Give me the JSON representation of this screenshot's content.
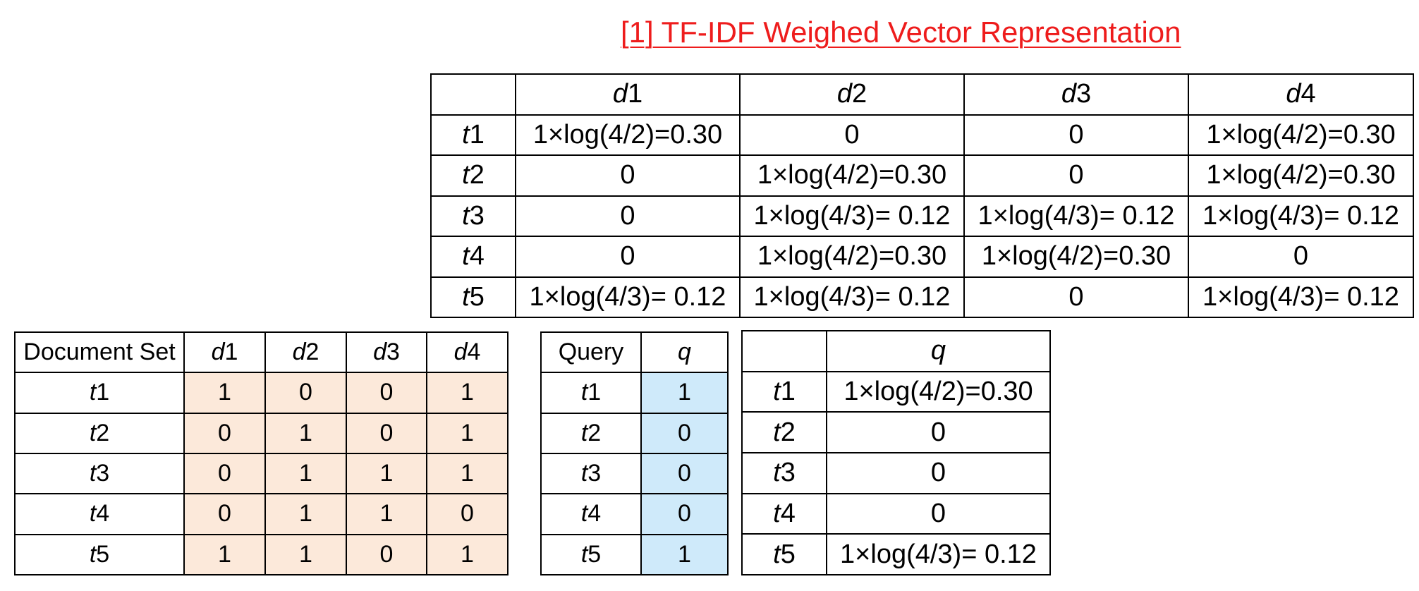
{
  "title": "[1] TF-IDF Weighed Vector Representation",
  "tfidf_table": {
    "corner": "",
    "columns": [
      {
        "prefix": "d",
        "num": "1"
      },
      {
        "prefix": "d",
        "num": "2"
      },
      {
        "prefix": "d",
        "num": "3"
      },
      {
        "prefix": "d",
        "num": "4"
      }
    ],
    "rows": [
      {
        "prefix": "t",
        "num": "1",
        "cells": [
          "1×log(4/2)=0.30",
          "0",
          "0",
          "1×log(4/2)=0.30"
        ]
      },
      {
        "prefix": "t",
        "num": "2",
        "cells": [
          "0",
          "1×log(4/2)=0.30",
          "0",
          "1×log(4/2)=0.30"
        ]
      },
      {
        "prefix": "t",
        "num": "3",
        "cells": [
          "0",
          "1×log(4/3)= 0.12",
          "1×log(4/3)= 0.12",
          "1×log(4/3)= 0.12"
        ]
      },
      {
        "prefix": "t",
        "num": "4",
        "cells": [
          "0",
          "1×log(4/2)=0.30",
          "1×log(4/2)=0.30",
          "0"
        ]
      },
      {
        "prefix": "t",
        "num": "5",
        "cells": [
          "1×log(4/3)= 0.12",
          "1×log(4/3)= 0.12",
          "0",
          "1×log(4/3)= 0.12"
        ]
      }
    ]
  },
  "document_set_table": {
    "header": "Document Set",
    "columns": [
      {
        "prefix": "d",
        "num": "1"
      },
      {
        "prefix": "d",
        "num": "2"
      },
      {
        "prefix": "d",
        "num": "3"
      },
      {
        "prefix": "d",
        "num": "4"
      }
    ],
    "rows": [
      {
        "prefix": "t",
        "num": "1",
        "cells": [
          "1",
          "0",
          "0",
          "1"
        ]
      },
      {
        "prefix": "t",
        "num": "2",
        "cells": [
          "0",
          "1",
          "0",
          "1"
        ]
      },
      {
        "prefix": "t",
        "num": "3",
        "cells": [
          "0",
          "1",
          "1",
          "1"
        ]
      },
      {
        "prefix": "t",
        "num": "4",
        "cells": [
          "0",
          "1",
          "1",
          "0"
        ]
      },
      {
        "prefix": "t",
        "num": "5",
        "cells": [
          "1",
          "1",
          "0",
          "1"
        ]
      }
    ],
    "cell_color": "#fce9da"
  },
  "query_table": {
    "header": "Query",
    "column": "q",
    "rows": [
      {
        "prefix": "t",
        "num": "1",
        "value": "1"
      },
      {
        "prefix": "t",
        "num": "2",
        "value": "0"
      },
      {
        "prefix": "t",
        "num": "3",
        "value": "0"
      },
      {
        "prefix": "t",
        "num": "4",
        "value": "0"
      },
      {
        "prefix": "t",
        "num": "5",
        "value": "1"
      }
    ],
    "cell_color": "#cfeafa"
  },
  "query_weights_table": {
    "corner": "",
    "column": "q",
    "rows": [
      {
        "prefix": "t",
        "num": "1",
        "value": "1×log(4/2)=0.30"
      },
      {
        "prefix": "t",
        "num": "2",
        "value": "0"
      },
      {
        "prefix": "t",
        "num": "3",
        "value": "0"
      },
      {
        "prefix": "t",
        "num": "4",
        "value": "0"
      },
      {
        "prefix": "t",
        "num": "5",
        "value": "1×log(4/3)= 0.12"
      }
    ]
  },
  "colors": {
    "title": "#ee1c1c",
    "border": "#000000"
  }
}
